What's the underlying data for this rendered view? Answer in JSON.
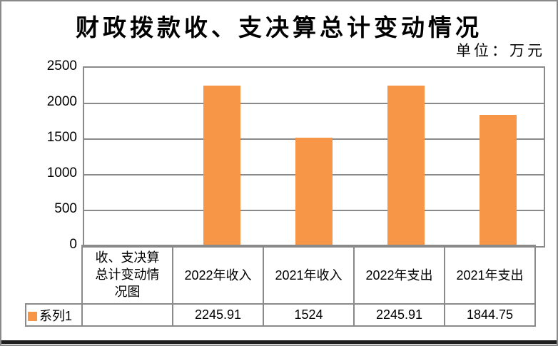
{
  "title": "财政拨款收、支决算总计变动情况",
  "unit_label": "单位：万元",
  "colors": {
    "bar": "#F79646",
    "grid": "#8A8A8A",
    "text": "#000000"
  },
  "chart_data": {
    "type": "bar",
    "title": "财政拨款收、支决算总计变动情况",
    "unit": "万元",
    "axis_title": "收、支决算总计变动情况图",
    "categories": [
      "2022年收入",
      "2021年收入",
      "2022年支出",
      "2021年支出"
    ],
    "series": [
      {
        "name": "系列1",
        "values": [
          2245.91,
          1524,
          2245.91,
          1844.75
        ]
      }
    ],
    "value_labels": [
      "2245.91",
      "1524",
      "2245.91",
      "1844.75"
    ],
    "ylim": [
      0,
      2500
    ],
    "ytick_interval": 500,
    "yticks": [
      2500,
      2000,
      1500,
      1000,
      500,
      0
    ],
    "grid": true,
    "legend_position": "bottom-left",
    "data_table": true
  }
}
